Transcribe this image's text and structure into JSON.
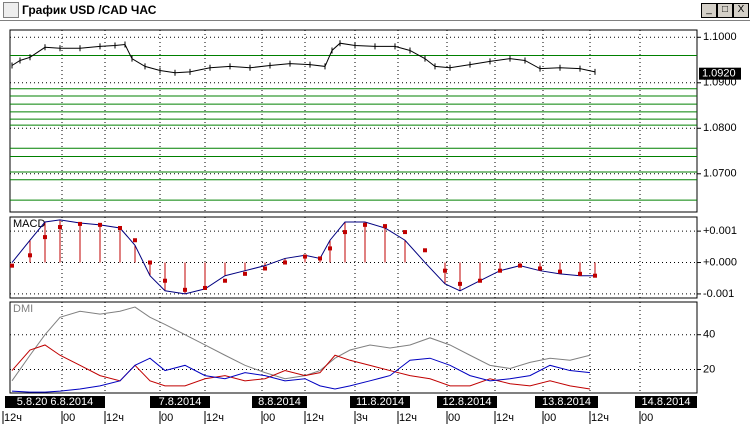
{
  "window": {
    "title": "График USD /CAD ЧАС"
  },
  "chart_data": [
    {
      "type": "line",
      "color": "#000000",
      "x": [
        3,
        5,
        7.5,
        11.25,
        15,
        20,
        25,
        28.75,
        31.25,
        33,
        36.25,
        40,
        43.75,
        47.5,
        52.5,
        57.5,
        62.5,
        67.5,
        72.5,
        77.5,
        81.25,
        83,
        85,
        88.75,
        93.75,
        98.75,
        102.5,
        106.25,
        108.75,
        112.5,
        117.5,
        122.5,
        127.5,
        131.25,
        135,
        140,
        145,
        148.75
      ],
      "values": [
        1.0938,
        1.0949,
        1.0956,
        1.0978,
        1.0976,
        1.0976,
        1.098,
        1.0982,
        1.0984,
        1.0953,
        1.0936,
        1.0927,
        1.0922,
        1.0924,
        1.0933,
        1.0936,
        1.0933,
        1.0938,
        1.0942,
        1.094,
        1.0936,
        1.0971,
        1.0987,
        1.0982,
        1.098,
        1.098,
        1.0971,
        1.0953,
        1.0936,
        1.0933,
        1.094,
        1.0947,
        1.0953,
        1.0949,
        1.0931,
        1.0933,
        1.0931,
        1.0924
      ],
      "levels": [
        1.096,
        1.0887,
        1.0871,
        1.0853,
        1.0836,
        1.082,
        1.0807,
        1.0756,
        1.0738,
        1.0704,
        1.0687,
        1.0642
      ],
      "level_color": "#008000",
      "ylim": [
        1.0616,
        1.1016
      ],
      "yticks": [
        {
          "value": 1.1,
          "label": "1.1000"
        },
        {
          "value": 1.09,
          "label": "1.0900"
        },
        {
          "value": 1.08,
          "label": "1.0800"
        },
        {
          "value": 1.07,
          "label": "1.0700"
        }
      ],
      "last": {
        "value": 1.092,
        "label": "1.0920"
      }
    },
    {
      "type": "macd",
      "title": "MACD",
      "x": [
        3,
        7.5,
        11.25,
        15,
        20,
        25,
        30,
        33.75,
        37.5,
        41.25,
        46.25,
        51.25,
        56.25,
        61.25,
        66.25,
        71.25,
        76.25,
        80,
        82.5,
        86.25,
        91.25,
        96.25,
        101.25,
        106.25,
        111.25,
        115,
        120,
        125,
        130,
        135,
        140,
        145,
        148.75
      ],
      "series": [
        {
          "color": "#000080",
          "values": [
            0,
            0.00071,
            0.00129,
            0.00136,
            0.00126,
            0.0012,
            0.0011,
            0.00055,
            -0.00042,
            -0.0009,
            -0.001,
            -0.00084,
            -0.00042,
            -0.00026,
            -0.0001,
            0.00013,
            0.00023,
            0.00013,
            0.00071,
            0.00129,
            0.00129,
            0.0011,
            0.00071,
            0,
            -0.00068,
            -0.0009,
            -0.00058,
            -0.00026,
            -0.0001,
            -0.00026,
            -0.00036,
            -0.00042,
            -0.00042
          ]
        },
        {
          "color": "#c00000",
          "values": [
            -0.0001,
            0.00023,
            0.00081,
            0.00113,
            0.00123,
            0.0012,
            0.0011,
            0.00071,
            0,
            -0.00058,
            -0.00087,
            -0.00081,
            -0.00058,
            -0.00036,
            -0.00019,
            0,
            0.00019,
            0.00013,
            0.00045,
            0.00097,
            0.0012,
            0.00116,
            0.00097,
            0.00039,
            -0.00026,
            -0.00068,
            -0.00058,
            -0.00026,
            -0.0001,
            -0.00019,
            -0.00029,
            -0.00036,
            -0.00042
          ]
        }
      ],
      "ylim": [
        -0.00113,
        0.00145
      ],
      "yticks": [
        {
          "value": 0.001,
          "label": "+0.001"
        },
        {
          "value": 0,
          "label": "+0.000"
        },
        {
          "value": -0.001,
          "label": "-0.001"
        }
      ]
    },
    {
      "type": "line",
      "title": "DMI",
      "x": [
        3,
        7.5,
        11.25,
        15,
        20,
        25,
        30,
        33.75,
        37.5,
        41.25,
        46.25,
        51.25,
        56.25,
        61.25,
        66.25,
        71.25,
        76.25,
        80,
        83.75,
        87.5,
        92.5,
        97.5,
        102.5,
        107.5,
        112.5,
        117.5,
        122.5,
        127.5,
        132.5,
        137.5,
        142.5,
        147.5
      ],
      "series": [
        {
          "color": "#808080",
          "values": [
            13.5,
            28.2,
            40,
            50,
            53.5,
            51.8,
            53.5,
            55.9,
            50,
            45.9,
            40,
            34.1,
            28.2,
            22.4,
            18.2,
            14.7,
            16.5,
            19.4,
            26.5,
            31.2,
            34.1,
            32.4,
            34.1,
            38.2,
            34.1,
            28.2,
            22.4,
            20.6,
            24.1,
            26.5,
            25.3,
            28.2
          ]
        },
        {
          "color": "#c00000",
          "values": [
            19.4,
            31.2,
            34.1,
            28.2,
            22.4,
            16.5,
            13.5,
            22.4,
            13.5,
            10.6,
            10.6,
            14.7,
            16.5,
            13.5,
            14.7,
            19.4,
            16.5,
            18.2,
            28.2,
            25.3,
            22.4,
            19.4,
            16.5,
            14.7,
            10.6,
            10.6,
            14.7,
            11.8,
            10.6,
            13.5,
            10.6,
            8.8
          ]
        },
        {
          "color": "#0000c0",
          "values": [
            7.6,
            7,
            7,
            7.6,
            8.8,
            10.6,
            13.5,
            22.4,
            26.5,
            19.4,
            22.4,
            16.5,
            14.7,
            18.2,
            16.5,
            13.5,
            14.7,
            10.6,
            8.8,
            10.6,
            13.5,
            16.5,
            25.3,
            26.5,
            22.4,
            16.5,
            13.5,
            14.7,
            16.5,
            22.4,
            19.4,
            18.2
          ]
        }
      ],
      "ylim": [
        6.5,
        58.8
      ],
      "yticks": [
        20,
        40
      ],
      "xlim": [
        0,
        174.25
      ],
      "xticks": [
        {
          "value": 0.75,
          "label": "12ч"
        },
        {
          "value": 15.5,
          "label": "00"
        },
        {
          "value": 26.25,
          "label": "12ч"
        },
        {
          "value": 40,
          "label": "00"
        },
        {
          "value": 51.25,
          "label": "12ч"
        },
        {
          "value": 65.5,
          "label": "00"
        },
        {
          "value": 76.25,
          "label": "12ч"
        },
        {
          "value": 88.75,
          "label": "3ч"
        },
        {
          "value": 99.5,
          "label": "12ч"
        },
        {
          "value": 111.75,
          "label": "00"
        },
        {
          "value": 123.75,
          "label": "12ч"
        },
        {
          "value": 135.75,
          "label": "00"
        },
        {
          "value": 147.5,
          "label": "12ч"
        },
        {
          "value": 160,
          "label": "00"
        }
      ],
      "dates": [
        "5.8.20 6.8.2014",
        "7.8.2014",
        "8.8.2014",
        "11.8.2014",
        "12.8.2014",
        "13.8.2014",
        "14.8.2014"
      ]
    }
  ]
}
